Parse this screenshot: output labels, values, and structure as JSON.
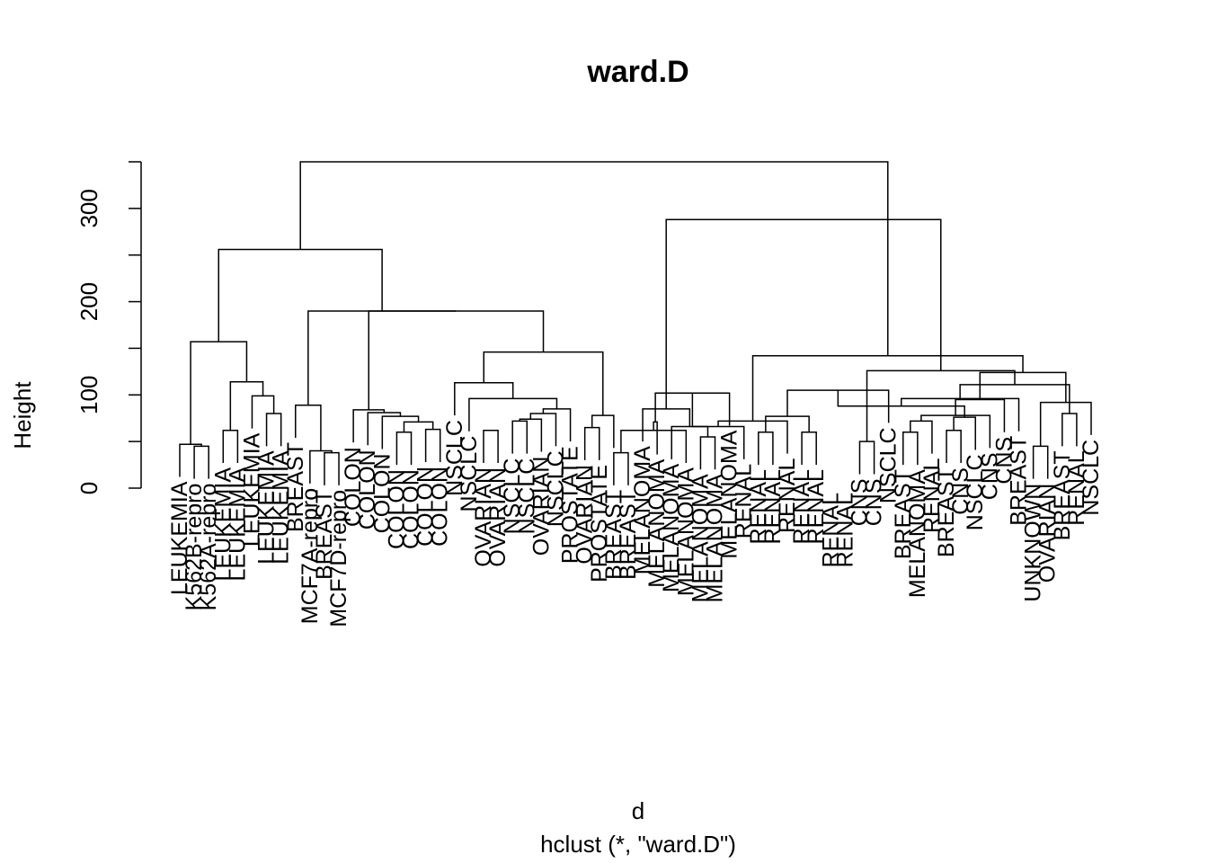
{
  "chart_data": {
    "type": "dendrogram",
    "title": "ward.D",
    "xlabel": "d",
    "sublabel": "hclust (*, \"ward.D\")",
    "ylabel": "Height",
    "ylim": [
      0,
      350
    ],
    "yticks": [
      0,
      100,
      200,
      300
    ],
    "leaves": [
      "LEUKEMIA",
      "K562B-repro",
      "K562A-repro",
      "LEUKEMIA",
      "LEUKEMIA",
      "LEUKEMIA",
      "LEUKEMIA",
      "LEUKEMIA",
      "BREAST",
      "MCF7A-repro",
      "BREAST",
      "MCF7D-repro",
      "COLON",
      "COLON",
      "COLON",
      "COLON",
      "COLON",
      "COLON",
      "COLON",
      "NSCLC",
      "NSCLC",
      "OVARIAN",
      "OVARIAN",
      "NSCLC",
      "NSCLC",
      "OVARIAN",
      "NSCLC",
      "PROSTATE",
      "OVARIAN",
      "PROSTATE",
      "BREAST",
      "BREAST",
      "MELANOMA",
      "MELANOMA",
      "MELANOMA",
      "MELANOMA",
      "MELANOMA",
      "MELANOMA",
      "MELANOMA",
      "RENAL",
      "RENAL",
      "RENAL",
      "RENAL",
      "RENAL",
      "RENAL",
      "RENAL",
      "RENAL",
      "CNS",
      "CNS",
      "NSCLC",
      "BREAST",
      "MELANOMA",
      "RENAL",
      "BREAST",
      "CNS",
      "NSCLC",
      "CNS",
      "CNS",
      "BREAST",
      "UNKNOWN",
      "OVARIAN",
      "BREAST",
      "RENAL",
      "NSCLC"
    ],
    "merges": [
      [
        -2,
        -3,
        45
      ],
      [
        -1,
        1,
        47
      ],
      [
        -4,
        -5,
        62
      ],
      [
        -7,
        -8,
        80
      ],
      [
        -6,
        4,
        99
      ],
      [
        3,
        5,
        114
      ],
      [
        2,
        6,
        157
      ],
      [
        -11,
        -12,
        38
      ],
      [
        -10,
        8,
        40
      ],
      [
        -9,
        9,
        89
      ],
      [
        -16,
        -17,
        60
      ],
      [
        -18,
        -19,
        63
      ],
      [
        11,
        12,
        71
      ],
      [
        -15,
        13,
        77
      ],
      [
        -14,
        14,
        81
      ],
      [
        -13,
        15,
        84
      ],
      [
        -22,
        -23,
        62
      ],
      [
        -24,
        -25,
        72
      ],
      [
        -26,
        18,
        74
      ],
      [
        -27,
        19,
        80
      ],
      [
        -28,
        20,
        85
      ],
      [
        -21,
        21,
        96
      ],
      [
        -20,
        22,
        113
      ],
      [
        -29,
        -30,
        65
      ],
      [
        -31,
        24,
        78
      ],
      [
        23,
        25,
        146
      ],
      [
        16,
        26,
        190
      ],
      [
        10,
        27,
        190
      ],
      [
        7,
        28,
        256
      ],
      [
        -31,
        -32,
        38
      ],
      [
        -37,
        -38,
        55
      ],
      [
        -36,
        30,
        62
      ],
      [
        -35,
        31,
        66
      ],
      [
        -34,
        32,
        71
      ],
      [
        -33,
        33,
        85
      ],
      [
        -39,
        34,
        102
      ],
      [
        -41,
        -42,
        60
      ],
      [
        -40,
        36,
        66
      ],
      [
        -44,
        -45,
        60
      ],
      [
        -43,
        38,
        72
      ],
      [
        37,
        39,
        77
      ],
      [
        -48,
        -49,
        50
      ],
      [
        -50,
        41,
        105
      ],
      [
        -51,
        -52,
        60
      ],
      [
        -54,
        -55,
        62
      ],
      [
        -53,
        44,
        72
      ],
      [
        -56,
        45,
        76
      ],
      [
        -57,
        46,
        78
      ],
      [
        43,
        47,
        88
      ],
      [
        -58,
        48,
        95
      ],
      [
        -59,
        49,
        96
      ],
      [
        -60,
        -61,
        45
      ],
      [
        -62,
        -63,
        80
      ],
      [
        -64,
        52,
        92
      ],
      [
        51,
        53,
        111
      ],
      [
        50,
        54,
        124
      ],
      [
        42,
        55,
        126
      ],
      [
        40,
        56,
        142
      ],
      [
        35,
        57,
        288
      ],
      [
        29,
        58,
        350
      ]
    ]
  }
}
